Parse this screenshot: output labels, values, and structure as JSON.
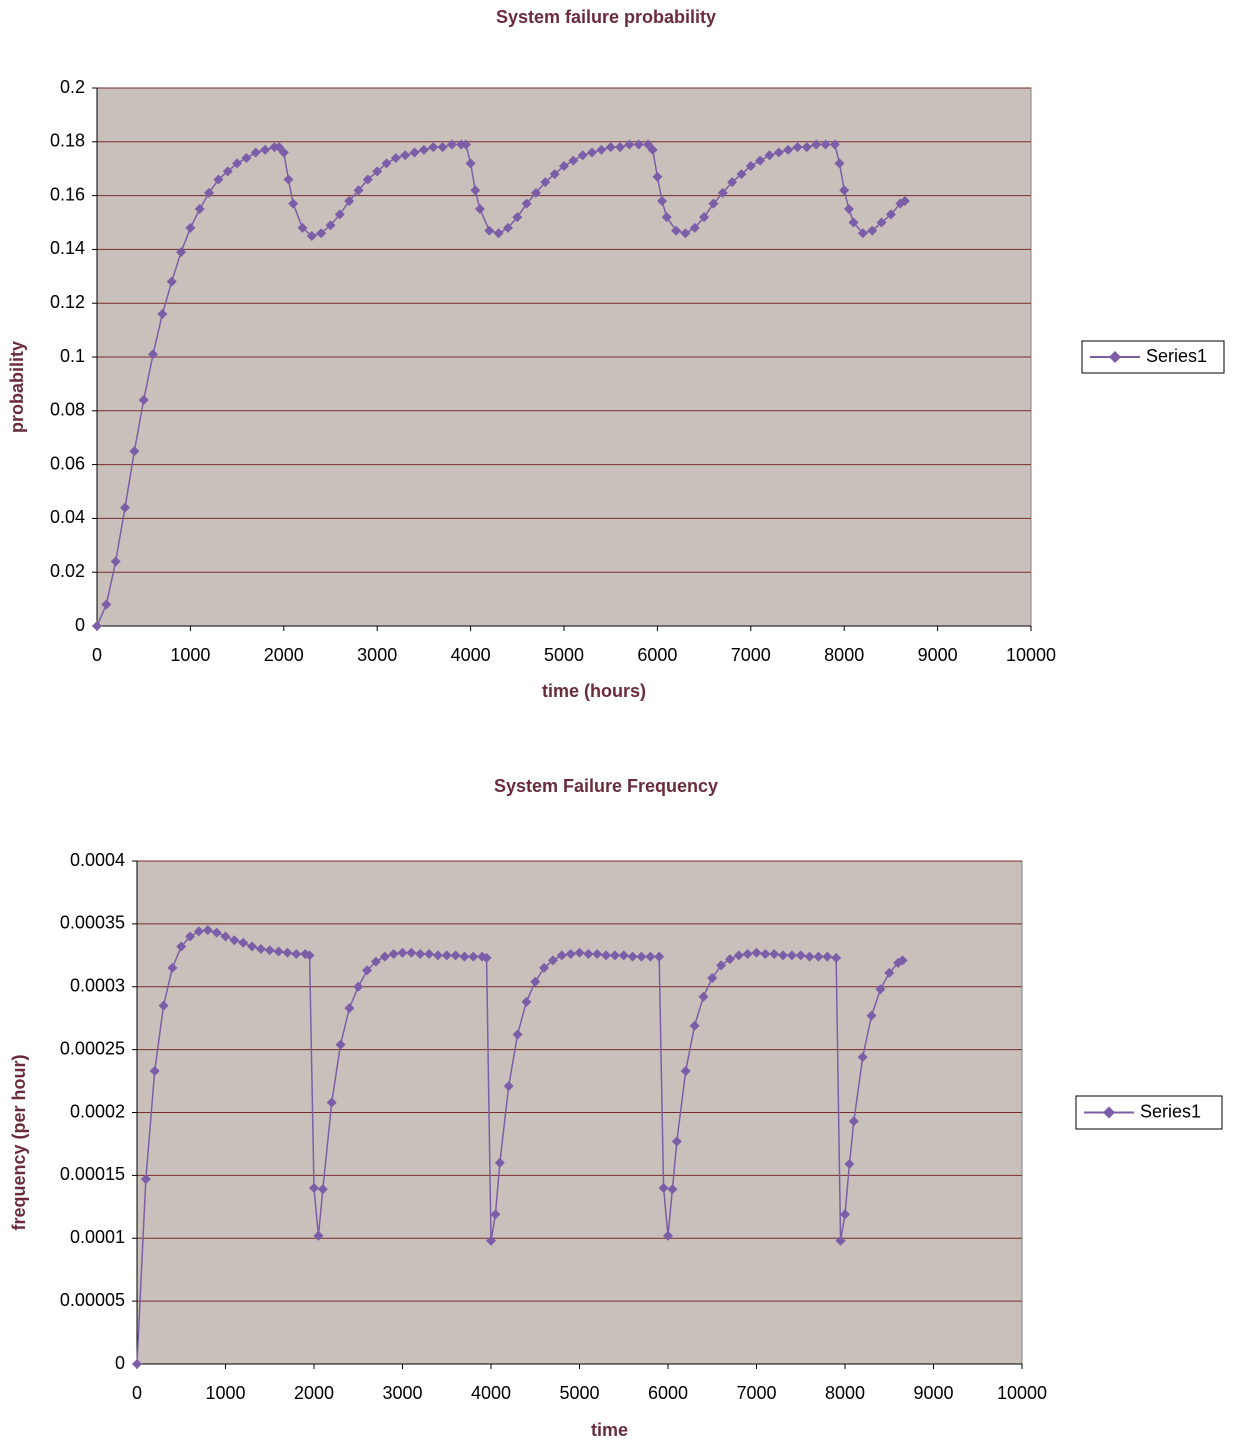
{
  "chart_data": [
    {
      "type": "line",
      "title": "System failure probability",
      "x_label": "time (hours)",
      "y_label": "probability",
      "x": [
        0,
        100,
        200,
        300,
        400,
        500,
        600,
        700,
        800,
        900,
        1000,
        1100,
        1200,
        1300,
        1400,
        1500,
        1600,
        1700,
        1800,
        1900,
        1950,
        2000,
        2050,
        2100,
        2200,
        2300,
        2400,
        2500,
        2600,
        2700,
        2800,
        2900,
        3000,
        3100,
        3200,
        3300,
        3400,
        3500,
        3600,
        3700,
        3800,
        3900,
        3950,
        4000,
        4050,
        4100,
        4200,
        4300,
        4400,
        4500,
        4600,
        4700,
        4800,
        4900,
        5000,
        5100,
        5200,
        5300,
        5400,
        5500,
        5600,
        5700,
        5800,
        5900,
        5950,
        6000,
        6050,
        6100,
        6200,
        6300,
        6400,
        6500,
        6600,
        6700,
        6800,
        6900,
        7000,
        7100,
        7200,
        7300,
        7400,
        7500,
        7600,
        7700,
        7800,
        7900,
        7950,
        8000,
        8050,
        8100,
        8200,
        8300,
        8400,
        8500,
        8600,
        8650
      ],
      "series": [
        {
          "name": "Series1",
          "color": "#7b5ea7",
          "values": [
            0,
            0.008,
            0.024,
            0.044,
            0.065,
            0.084,
            0.101,
            0.116,
            0.128,
            0.139,
            0.148,
            0.155,
            0.161,
            0.166,
            0.169,
            0.172,
            0.174,
            0.176,
            0.177,
            0.178,
            0.178,
            0.176,
            0.166,
            0.157,
            0.148,
            0.145,
            0.146,
            0.149,
            0.153,
            0.158,
            0.162,
            0.166,
            0.169,
            0.172,
            0.174,
            0.175,
            0.176,
            0.177,
            0.178,
            0.178,
            0.179,
            0.179,
            0.179,
            0.172,
            0.162,
            0.155,
            0.147,
            0.146,
            0.148,
            0.152,
            0.157,
            0.161,
            0.165,
            0.168,
            0.171,
            0.173,
            0.175,
            0.176,
            0.177,
            0.178,
            0.178,
            0.179,
            0.179,
            0.179,
            0.177,
            0.167,
            0.158,
            0.152,
            0.147,
            0.146,
            0.148,
            0.152,
            0.157,
            0.161,
            0.165,
            0.168,
            0.171,
            0.173,
            0.175,
            0.176,
            0.177,
            0.178,
            0.178,
            0.179,
            0.179,
            0.179,
            0.172,
            0.162,
            0.155,
            0.15,
            0.146,
            0.147,
            0.15,
            0.153,
            0.157,
            0.158
          ]
        }
      ],
      "xlim": [
        0,
        10000
      ],
      "xticks": [
        0,
        1000,
        2000,
        3000,
        4000,
        5000,
        6000,
        7000,
        8000,
        9000,
        10000
      ],
      "ylim": [
        0,
        0.2
      ],
      "yticks": [
        0,
        0.02,
        0.04,
        0.06,
        0.08,
        0.1,
        0.12,
        0.14,
        0.16,
        0.18,
        0.2
      ],
      "grid": true,
      "legend": "right",
      "plot_background": "#c9c0bb"
    },
    {
      "type": "line",
      "title": "System Failure Frequency",
      "x_label": "time",
      "y_label": "frequency (per hour)",
      "x": [
        0,
        100,
        200,
        300,
        400,
        500,
        600,
        700,
        800,
        900,
        1000,
        1100,
        1200,
        1300,
        1400,
        1500,
        1600,
        1700,
        1800,
        1900,
        1950,
        2000,
        2050,
        2100,
        2200,
        2300,
        2400,
        2500,
        2600,
        2700,
        2800,
        2900,
        3000,
        3100,
        3200,
        3300,
        3400,
        3500,
        3600,
        3700,
        3800,
        3900,
        3950,
        4000,
        4050,
        4100,
        4200,
        4300,
        4400,
        4500,
        4600,
        4700,
        4800,
        4900,
        5000,
        5100,
        5200,
        5300,
        5400,
        5500,
        5600,
        5700,
        5800,
        5900,
        5950,
        6000,
        6050,
        6100,
        6200,
        6300,
        6400,
        6500,
        6600,
        6700,
        6800,
        6900,
        7000,
        7100,
        7200,
        7300,
        7400,
        7500,
        7600,
        7700,
        7800,
        7900,
        7950,
        8000,
        8050,
        8100,
        8200,
        8300,
        8400,
        8500,
        8600,
        8650
      ],
      "series": [
        {
          "name": "Series1",
          "color": "#7b5ea7",
          "values": [
            0,
            0.000147,
            0.000233,
            0.000285,
            0.000315,
            0.000332,
            0.00034,
            0.000344,
            0.000345,
            0.000343,
            0.00034,
            0.000337,
            0.000335,
            0.000332,
            0.00033,
            0.000329,
            0.000328,
            0.000327,
            0.000326,
            0.000326,
            0.000325,
            0.00014,
            0.000102,
            0.000139,
            0.000208,
            0.000254,
            0.000283,
            0.0003,
            0.000313,
            0.00032,
            0.000324,
            0.000326,
            0.000327,
            0.000327,
            0.000326,
            0.000326,
            0.000325,
            0.000325,
            0.000325,
            0.000324,
            0.000324,
            0.000324,
            0.000323,
            9.8e-05,
            0.000119,
            0.00016,
            0.000221,
            0.000262,
            0.000288,
            0.000304,
            0.000315,
            0.000321,
            0.000325,
            0.000326,
            0.000327,
            0.000326,
            0.000326,
            0.000325,
            0.000325,
            0.000325,
            0.000324,
            0.000324,
            0.000324,
            0.000324,
            0.00014,
            0.000102,
            0.000139,
            0.000177,
            0.000233,
            0.000269,
            0.000292,
            0.000307,
            0.000317,
            0.000322,
            0.000325,
            0.000326,
            0.000327,
            0.000326,
            0.000326,
            0.000325,
            0.000325,
            0.000325,
            0.000324,
            0.000324,
            0.000324,
            0.000323,
            9.8e-05,
            0.000119,
            0.000159,
            0.000193,
            0.000244,
            0.000277,
            0.000298,
            0.000311,
            0.000319,
            0.000321
          ]
        }
      ],
      "xlim": [
        0,
        10000
      ],
      "xticks": [
        0,
        1000,
        2000,
        3000,
        4000,
        5000,
        6000,
        7000,
        8000,
        9000,
        10000
      ],
      "ylim": [
        0,
        0.0004
      ],
      "yticks": [
        0,
        5e-05,
        0.0001,
        0.00015,
        0.0002,
        0.00025,
        0.0003,
        0.00035,
        0.0004
      ],
      "grid": true,
      "legend": "right",
      "plot_background": "#c9c0bb"
    }
  ]
}
